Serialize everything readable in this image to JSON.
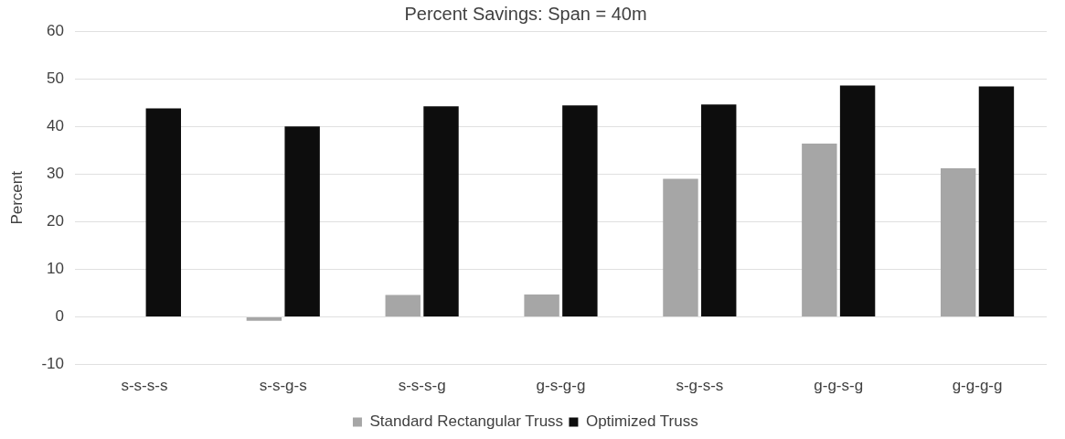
{
  "chart_data": {
    "type": "bar",
    "title": "Percent Savings: Span = 40m",
    "ylabel": "Percent",
    "categories": [
      "s-s-s-s",
      "s-s-g-s",
      "s-s-s-g",
      "g-s-g-g",
      "s-g-s-s",
      "g-g-s-g",
      "g-g-g-g"
    ],
    "series": [
      {
        "name": "Standard Rectangular Truss",
        "color": "#a6a6a6",
        "values": [
          0,
          -0.8,
          4.6,
          4.7,
          29,
          36.4,
          31.2
        ]
      },
      {
        "name": "Optimized Truss",
        "color": "#0d0d0d",
        "values": [
          43.8,
          40,
          44.2,
          44.4,
          44.6,
          48.6,
          48.4
        ]
      }
    ],
    "ylim": [
      -10,
      60
    ],
    "yticks": [
      -10,
      0,
      10,
      20,
      30,
      40,
      50,
      60
    ],
    "grid": "y",
    "legend": "bottom"
  }
}
